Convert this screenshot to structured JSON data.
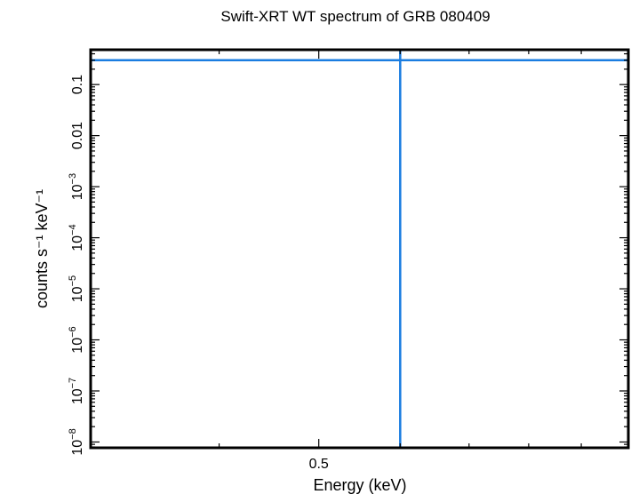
{
  "chart_data": {
    "type": "line",
    "title": "Swift-XRT WT spectrum of GRB 080409",
    "xlabel": "Energy (keV)",
    "ylabel": "counts s⁻¹ keV⁻¹",
    "x_scale": "log",
    "y_scale": "log",
    "xlim": [
      0.3,
      1.0
    ],
    "ylim": [
      7.7e-09,
      0.48
    ],
    "x_ticks": [
      {
        "value": 0.5,
        "label": "0.5"
      }
    ],
    "y_ticks": [
      {
        "exp": -8,
        "label": "10",
        "sup": "−8"
      },
      {
        "exp": -7,
        "label": "10",
        "sup": "−7"
      },
      {
        "exp": -6,
        "label": "10",
        "sup": "−6"
      },
      {
        "exp": -5,
        "label": "10",
        "sup": "−5"
      },
      {
        "exp": -4,
        "label": "10",
        "sup": "−4"
      },
      {
        "exp": -3,
        "label": "10",
        "sup": "−3"
      },
      {
        "exp": -2,
        "label": "0.01",
        "sup": ""
      },
      {
        "exp": -1,
        "label": "0.1",
        "sup": ""
      }
    ],
    "lines": [
      {
        "orientation": "horizontal",
        "y": 0.3
      },
      {
        "orientation": "vertical",
        "x": 0.6
      }
    ],
    "line_color": "#1a7de0",
    "grid": false,
    "legend": "none"
  }
}
